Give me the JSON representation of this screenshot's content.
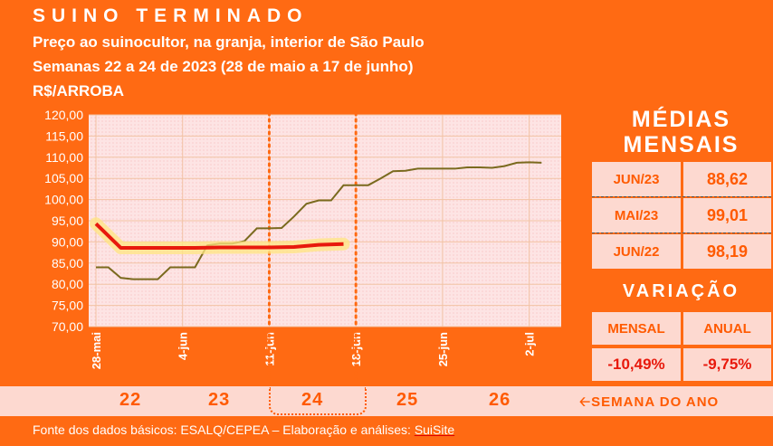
{
  "header": {
    "title": "SUINO TERMINADO",
    "line1": "Preço ao suinocultor, na granja, interior de São Paulo",
    "line2": "Semanas 22 a 24 de 2023 (28 de maio a 17 de junho)",
    "unit": "R$/ARROBA"
  },
  "colors": {
    "accent": "#ff6a13",
    "red_line": "#e8190c",
    "olive_line": "#7a6a1e",
    "panel": "#fdd9d0"
  },
  "chart_data": {
    "type": "line",
    "title": "",
    "xlabel": "",
    "ylabel": "R$/ARROBA",
    "ylim": [
      70,
      120
    ],
    "yticks": [
      "70,00",
      "75,00",
      "80,00",
      "85,00",
      "90,00",
      "95,00",
      "100,00",
      "105,00",
      "110,00",
      "115,00",
      "120,00"
    ],
    "xlim": [
      0,
      37
    ],
    "xticks": [
      {
        "label": "28-mai",
        "x": 0
      },
      {
        "label": "4-jun",
        "x": 7
      },
      {
        "label": "11-jun",
        "x": 14
      },
      {
        "label": "18-jun",
        "x": 21
      },
      {
        "label": "25-jun",
        "x": 28
      },
      {
        "label": "2-jul",
        "x": 35
      }
    ],
    "series": [
      {
        "name": "",
        "color": "#e8190c",
        "x": [
          0,
          2,
          4,
          6,
          8,
          10,
          12,
          14,
          16,
          18,
          20
        ],
        "y": [
          94.3,
          88.6,
          88.6,
          88.6,
          88.6,
          88.7,
          88.7,
          88.7,
          88.8,
          89.3,
          89.5
        ]
      },
      {
        "name": "",
        "color": "#7a6a1e",
        "x": [
          0,
          1,
          2,
          3,
          4,
          5,
          6,
          7,
          8,
          9,
          10,
          11,
          12,
          13,
          14,
          15,
          16,
          17,
          18,
          19,
          20,
          21,
          22,
          23,
          24,
          25,
          26,
          27,
          28,
          29,
          30,
          31,
          32,
          33,
          34,
          35,
          36
        ],
        "y": [
          84.0,
          84.0,
          81.5,
          81.2,
          81.2,
          81.2,
          84.0,
          84.0,
          84.0,
          89.2,
          89.6,
          89.6,
          90.2,
          93.2,
          93.2,
          93.3,
          96.0,
          99.0,
          99.8,
          99.8,
          103.4,
          103.4,
          103.4,
          105.0,
          106.7,
          106.8,
          107.3,
          107.3,
          107.3,
          107.3,
          107.6,
          107.6,
          107.5,
          107.9,
          108.7,
          108.8,
          108.7
        ]
      }
    ],
    "week_markers_x": [
      14,
      21
    ]
  },
  "side": {
    "medias_title_1": "MÉDIAS",
    "medias_title_2": "MENSAIS",
    "rows": [
      {
        "label": "JUN/23",
        "value": "88,62"
      },
      {
        "label": "MAI/23",
        "value": "99,01"
      },
      {
        "label": "JUN/22",
        "value": "98,19"
      }
    ],
    "variacao_title": "VARIAÇÃO",
    "mensal_label": "MENSAL",
    "anual_label": "ANUAL",
    "mensal_value": "-10,49%",
    "anual_value": "-9,75%"
  },
  "weeks": {
    "w22": "22",
    "w23": "23",
    "w24": "24",
    "w25": "25",
    "w26": "26",
    "label": "SEMANA DO ANO"
  },
  "footer": {
    "source": "Fonte dos dados básicos: ESALQ/CEPEA – Elaboração e análises: ",
    "brand": "SuiSite"
  }
}
